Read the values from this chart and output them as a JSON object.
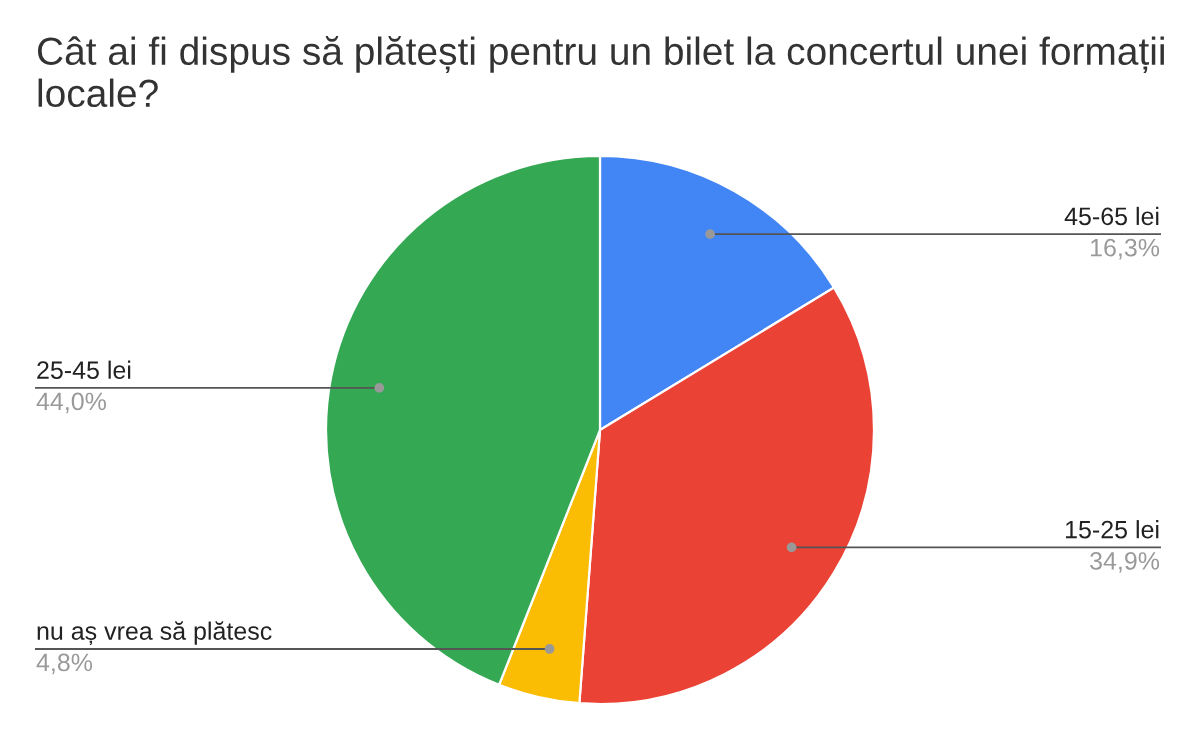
{
  "chart_data": {
    "type": "pie",
    "title": "Cât ai fi dispus să plătești pentru un bilet la concertul unei formații locale?",
    "categories": [
      "45-65 lei",
      "15-25 lei",
      "nu aș vrea să plătesc",
      "25-45 lei"
    ],
    "values": [
      16.3,
      34.9,
      4.8,
      44.0
    ],
    "colors": [
      "#4285f4",
      "#ea4335",
      "#fbbc04",
      "#34a853"
    ],
    "value_labels": [
      "16,3%",
      "34,9%",
      "4,8%",
      "44,0%"
    ]
  }
}
